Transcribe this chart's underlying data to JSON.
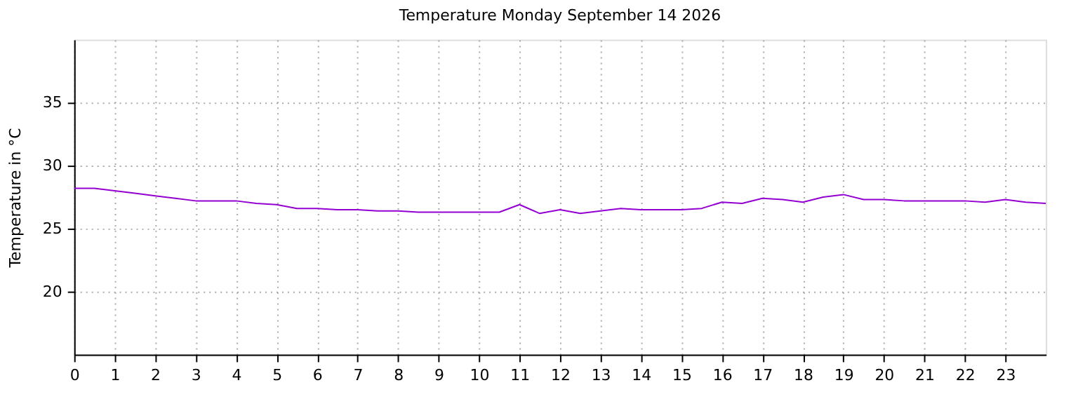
{
  "chart_data": {
    "type": "line",
    "title": "Temperature Monday September 14 2026",
    "ylabel": "Temperature in °C",
    "x": [
      0,
      0.5,
      1,
      1.5,
      2,
      2.5,
      3,
      3.5,
      4,
      4.5,
      5,
      5.5,
      6,
      6.5,
      7,
      7.5,
      8,
      8.5,
      9,
      9.5,
      10,
      10.5,
      11,
      11.5,
      12,
      12.5,
      13,
      13.5,
      14,
      14.5,
      15,
      15.5,
      16,
      16.5,
      17,
      17.5,
      18,
      18.5,
      19,
      19.5,
      20,
      20.5,
      21,
      21.5,
      22,
      22.5,
      23,
      23.5,
      24
    ],
    "series": [
      {
        "color": "#9400d3",
        "values": [
          28.2,
          28.2,
          28.0,
          27.8,
          27.6,
          27.4,
          27.2,
          27.2,
          27.2,
          27.0,
          26.9,
          26.6,
          26.6,
          26.5,
          26.5,
          26.4,
          26.4,
          26.3,
          26.3,
          26.3,
          26.3,
          26.3,
          26.9,
          26.2,
          26.5,
          26.2,
          26.4,
          26.6,
          26.5,
          26.5,
          26.5,
          26.6,
          27.1,
          27.0,
          27.4,
          27.3,
          27.1,
          27.5,
          27.7,
          27.3,
          27.3,
          27.2,
          27.2,
          27.2,
          27.2,
          27.1,
          27.3,
          27.1,
          27.0
        ]
      }
    ],
    "xlim": [
      0,
      24
    ],
    "xticks": [
      0,
      1,
      2,
      3,
      4,
      5,
      6,
      7,
      8,
      9,
      10,
      11,
      12,
      13,
      14,
      15,
      16,
      17,
      18,
      19,
      20,
      21,
      22,
      23
    ],
    "ylim": [
      15,
      40
    ],
    "yticks": [
      20,
      25,
      30,
      35
    ],
    "grid": true,
    "marker": "none",
    "line_style": "solid"
  }
}
